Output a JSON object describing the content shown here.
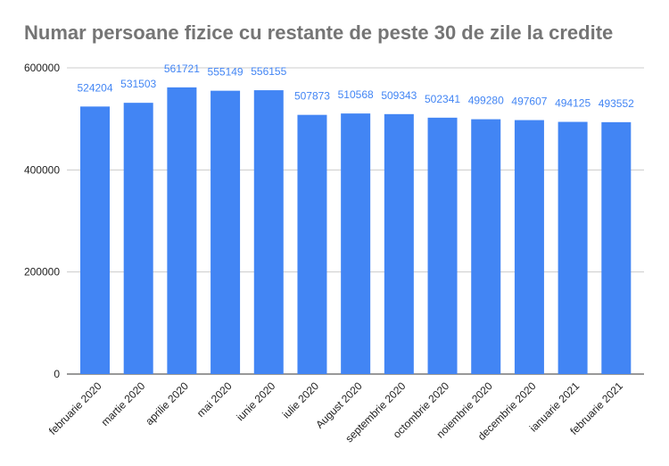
{
  "chart_data": {
    "type": "bar",
    "title": "Numar persoane fizice cu restante de peste 30 de zile la credite",
    "categories": [
      "februarie 2020",
      "martie 2020",
      "aprilie 2020",
      "mai 2020",
      "iunie 2020",
      "iulie 2020",
      "August 2020",
      "septembrie 2020",
      "octombrie 2020",
      "noiembrie 2020",
      "decembrie 2020",
      "ianuarie 2021",
      "februarie 2021"
    ],
    "values": [
      524204,
      531503,
      561721,
      555149,
      556155,
      507873,
      510568,
      509343,
      502341,
      499280,
      497607,
      494125,
      493552
    ],
    "y_ticks": [
      "0",
      "200000",
      "400000",
      "600000"
    ],
    "ylim": [
      0,
      600000
    ],
    "grid": true,
    "legend": "none",
    "bar_color": "#4285f4",
    "label_color": "#4285f4",
    "title_color": "#757575"
  }
}
